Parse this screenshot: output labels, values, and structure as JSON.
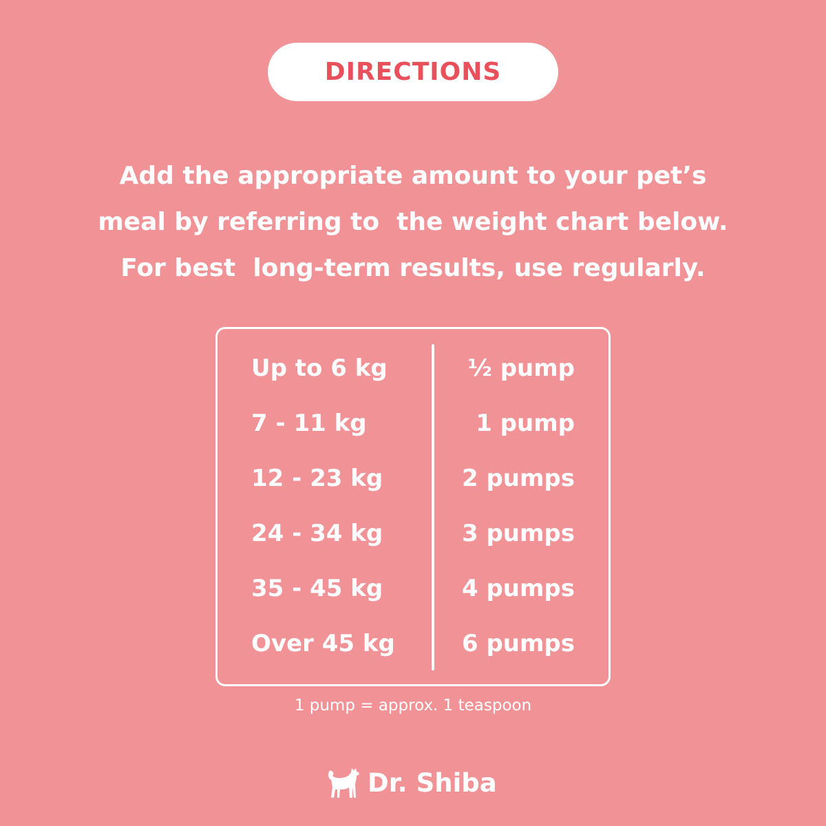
{
  "header": {
    "title": "DIRECTIONS"
  },
  "intro": {
    "lines": [
      "Add the appropriate amount to your pet’s",
      "meal by referring to  the weight chart below.",
      "For best  long-term results, use regularly."
    ]
  },
  "dosage_table": {
    "rows": [
      {
        "weight": "Up to 6 kg",
        "amount": "½ pump"
      },
      {
        "weight": "7 - 11 kg",
        "amount": "1 pump"
      },
      {
        "weight": "12 - 23 kg",
        "amount": "2 pumps"
      },
      {
        "weight": "24 - 34 kg",
        "amount": "3 pumps"
      },
      {
        "weight": "35 - 45 kg",
        "amount": "4 pumps"
      },
      {
        "weight": "Over 45 kg",
        "amount": "6 pumps"
      }
    ]
  },
  "footnote": "1 pump = approx. 1 teaspoon",
  "brand": {
    "name": "Dr. Shiba",
    "icon": "shiba-dog-icon"
  },
  "colors": {
    "background": "#F19296",
    "accent": "#E8505C",
    "text": "#FFFFFF"
  }
}
